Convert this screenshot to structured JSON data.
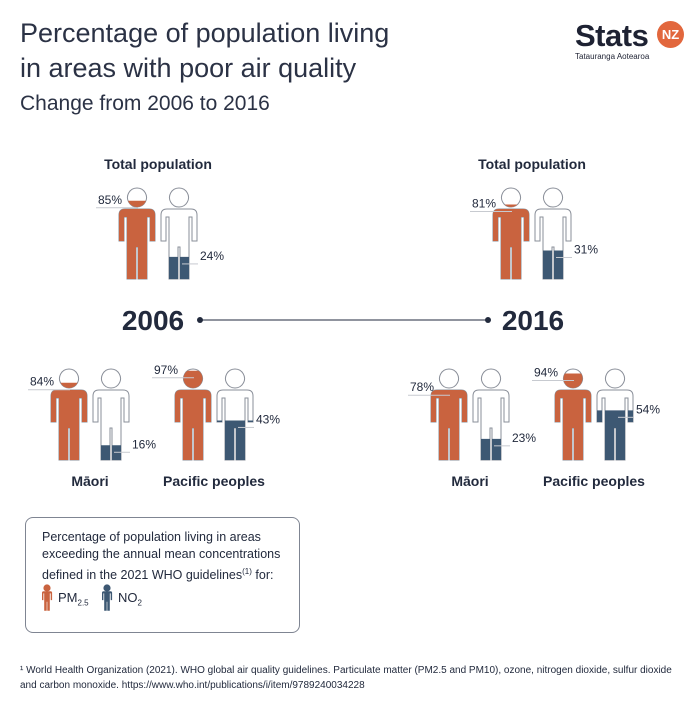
{
  "header": {
    "title_line1": "Percentage of population living",
    "title_line2": "in areas with poor air quality",
    "subtitle": "Change from 2006 to 2016"
  },
  "logo": {
    "word": "Stats",
    "badge": "NZ",
    "tagline": "Tatauranga Aotearoa"
  },
  "colors": {
    "pm25": "#c9633f",
    "no2": "#3d5873",
    "outline": "#8a8f99",
    "text": "#222a3d"
  },
  "chart_data": {
    "type": "pictograph",
    "years": [
      "2006",
      "2016"
    ],
    "series": [
      {
        "name": "PM2.5",
        "key": "pm25"
      },
      {
        "name": "NO2",
        "key": "no2"
      }
    ],
    "groups": [
      {
        "year": "2006",
        "label": "Total population",
        "pm25": 85,
        "no2": 24,
        "pm25_label": "85%",
        "no2_label": "24%"
      },
      {
        "year": "2006",
        "label": "Māori",
        "pm25": 84,
        "no2": 16,
        "pm25_label": "84%",
        "no2_label": "16%"
      },
      {
        "year": "2006",
        "label": "Pacific peoples",
        "pm25": 97,
        "no2": 43,
        "pm25_label": "97%",
        "no2_label": "43%"
      },
      {
        "year": "2016",
        "label": "Total population",
        "pm25": 81,
        "no2": 31,
        "pm25_label": "81%",
        "no2_label": "31%"
      },
      {
        "year": "2016",
        "label": "Māori",
        "pm25": 78,
        "no2": 23,
        "pm25_label": "78%",
        "no2_label": "23%"
      },
      {
        "year": "2016",
        "label": "Pacific peoples",
        "pm25": 94,
        "no2": 54,
        "pm25_label": "94%",
        "no2_label": "54%"
      }
    ]
  },
  "legend": {
    "text": "Percentage of population living in areas exceeding the annual mean concentrations defined in the 2021 WHO guidelines",
    "footnote_ref": "(1)",
    "text_end": " for:",
    "pm_label": "PM",
    "pm_sub": "2.5",
    "no_label": "NO",
    "no_sub": "2"
  },
  "footnote": "¹ World Health Organization (2021). WHO global air quality guidelines. Particulate matter (PM2.5 and PM10), ozone, nitrogen dioxide, sulfur dioxide and carbon monoxide. https://www.who.int/publications/i/item/9789240034228"
}
